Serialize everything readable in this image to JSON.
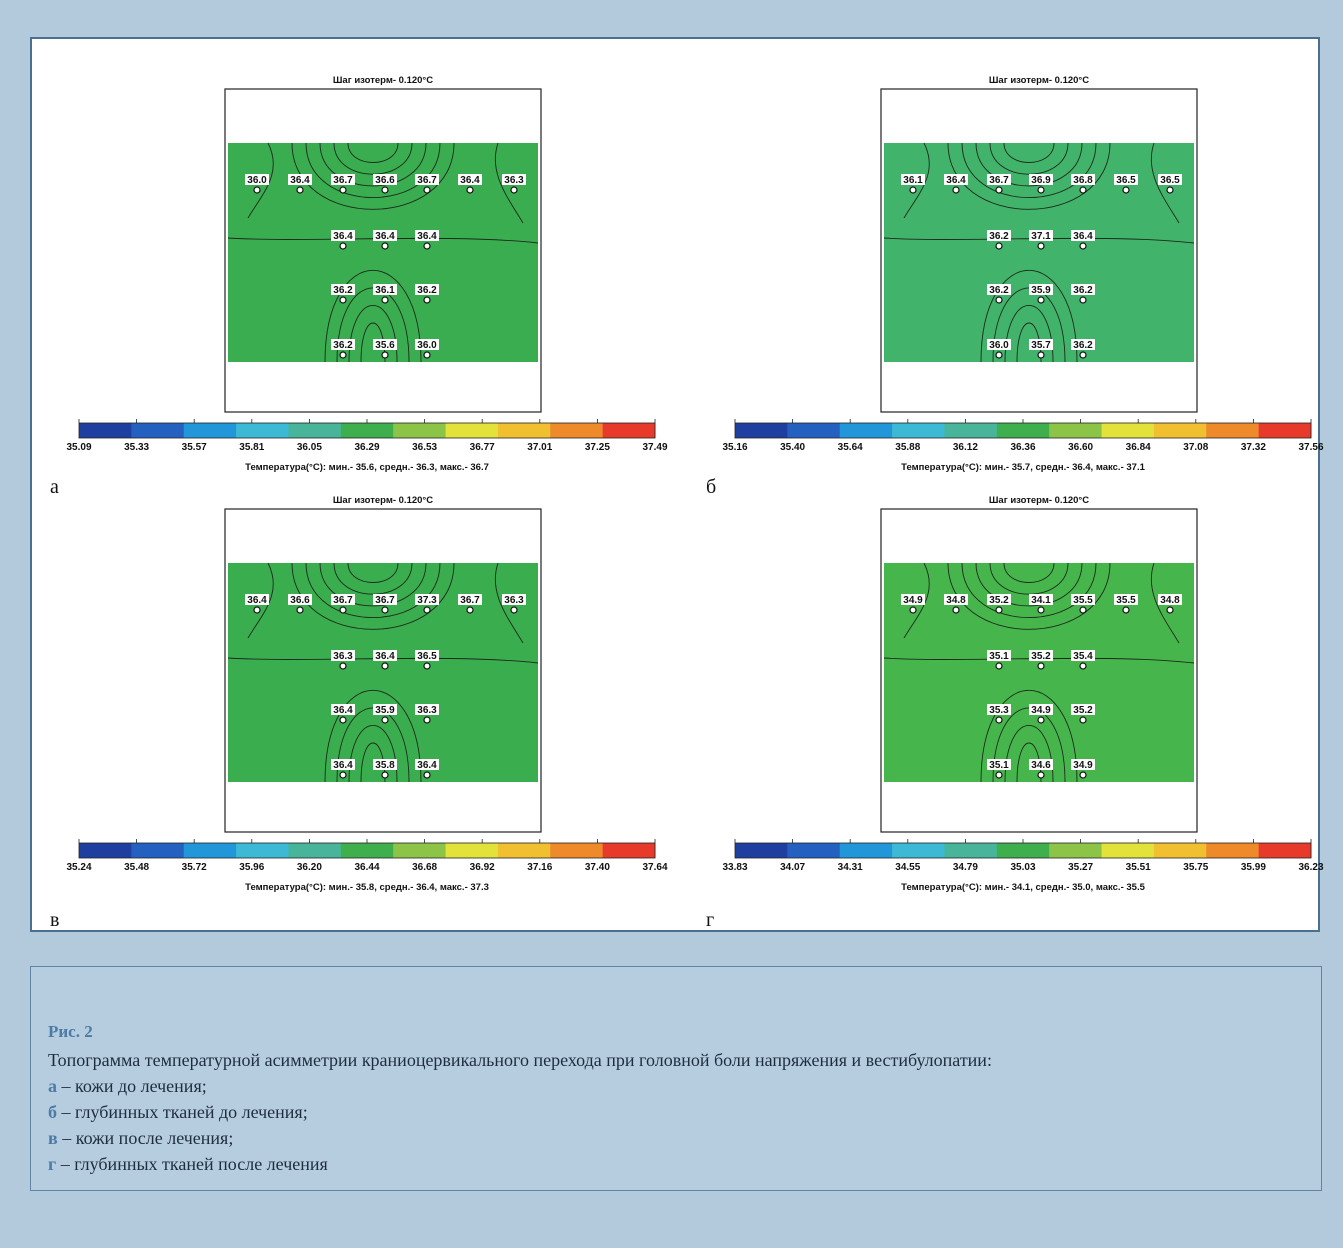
{
  "figure": {
    "panels": [
      {
        "letter": "а",
        "isotherm_title": "Шаг изотерм- 0.120°C",
        "colorbar_ticks": [
          "35.09",
          "35.33",
          "35.57",
          "35.81",
          "36.05",
          "36.29",
          "36.53",
          "36.77",
          "37.01",
          "37.25",
          "37.49"
        ],
        "stats": "Температура(°C): мин.- 35.6, средн.- 36.3, макс.- 36.7",
        "field_color": "#39ad4f",
        "points": [
          {
            "col": 0,
            "row": 0,
            "v": "36.0"
          },
          {
            "col": 1,
            "row": 0,
            "v": "36.4"
          },
          {
            "col": 2,
            "row": 0,
            "v": "36.7"
          },
          {
            "col": 3,
            "row": 0,
            "v": "36.6"
          },
          {
            "col": 4,
            "row": 0,
            "v": "36.7"
          },
          {
            "col": 5,
            "row": 0,
            "v": "36.4"
          },
          {
            "col": 6,
            "row": 0,
            "v": "36.3"
          },
          {
            "col": 2,
            "row": 1,
            "v": "36.4"
          },
          {
            "col": 3,
            "row": 1,
            "v": "36.4"
          },
          {
            "col": 4,
            "row": 1,
            "v": "36.4"
          },
          {
            "col": 2,
            "row": 2,
            "v": "36.2"
          },
          {
            "col": 3,
            "row": 2,
            "v": "36.1"
          },
          {
            "col": 4,
            "row": 2,
            "v": "36.2"
          },
          {
            "col": 2,
            "row": 3,
            "v": "36.2"
          },
          {
            "col": 3,
            "row": 3,
            "v": "35.6"
          },
          {
            "col": 4,
            "row": 3,
            "v": "36.0"
          }
        ]
      },
      {
        "letter": "б",
        "isotherm_title": "Шаг изотерм- 0.120°C",
        "colorbar_ticks": [
          "35.16",
          "35.40",
          "35.64",
          "35.88",
          "36.12",
          "36.36",
          "36.60",
          "36.84",
          "37.08",
          "37.32",
          "37.56"
        ],
        "stats": "Температура(°C): мин.- 35.7, средн.- 36.4, макс.- 37.1",
        "field_color": "#41b36a",
        "points": [
          {
            "col": 0,
            "row": 0,
            "v": "36.1"
          },
          {
            "col": 1,
            "row": 0,
            "v": "36.4"
          },
          {
            "col": 2,
            "row": 0,
            "v": "36.7"
          },
          {
            "col": 3,
            "row": 0,
            "v": "36.9"
          },
          {
            "col": 4,
            "row": 0,
            "v": "36.8"
          },
          {
            "col": 5,
            "row": 0,
            "v": "36.5"
          },
          {
            "col": 6,
            "row": 0,
            "v": "36.5"
          },
          {
            "col": 2,
            "row": 1,
            "v": "36.2"
          },
          {
            "col": 3,
            "row": 1,
            "v": "37.1"
          },
          {
            "col": 4,
            "row": 1,
            "v": "36.4"
          },
          {
            "col": 2,
            "row": 2,
            "v": "36.2"
          },
          {
            "col": 3,
            "row": 2,
            "v": "35.9"
          },
          {
            "col": 4,
            "row": 2,
            "v": "36.2"
          },
          {
            "col": 2,
            "row": 3,
            "v": "36.0"
          },
          {
            "col": 3,
            "row": 3,
            "v": "35.7"
          },
          {
            "col": 4,
            "row": 3,
            "v": "36.2"
          }
        ]
      },
      {
        "letter": "в",
        "isotherm_title": "Шаг изотерм- 0.120°C",
        "colorbar_ticks": [
          "35.24",
          "35.48",
          "35.72",
          "35.96",
          "36.20",
          "36.44",
          "36.68",
          "36.92",
          "37.16",
          "37.40",
          "37.64"
        ],
        "stats": "Температура(°C): мин.- 35.8, средн.- 36.4, макс.- 37.3",
        "field_color": "#3aad4e",
        "points": [
          {
            "col": 0,
            "row": 0,
            "v": "36.4"
          },
          {
            "col": 1,
            "row": 0,
            "v": "36.6"
          },
          {
            "col": 2,
            "row": 0,
            "v": "36.7"
          },
          {
            "col": 3,
            "row": 0,
            "v": "36.7"
          },
          {
            "col": 4,
            "row": 0,
            "v": "37.3"
          },
          {
            "col": 5,
            "row": 0,
            "v": "36.7"
          },
          {
            "col": 6,
            "row": 0,
            "v": "36.3"
          },
          {
            "col": 2,
            "row": 1,
            "v": "36.3"
          },
          {
            "col": 3,
            "row": 1,
            "v": "36.4"
          },
          {
            "col": 4,
            "row": 1,
            "v": "36.5"
          },
          {
            "col": 2,
            "row": 2,
            "v": "36.4"
          },
          {
            "col": 3,
            "row": 2,
            "v": "35.9"
          },
          {
            "col": 4,
            "row": 2,
            "v": "36.3"
          },
          {
            "col": 2,
            "row": 3,
            "v": "36.4"
          },
          {
            "col": 3,
            "row": 3,
            "v": "35.8"
          },
          {
            "col": 4,
            "row": 3,
            "v": "36.4"
          }
        ]
      },
      {
        "letter": "г",
        "isotherm_title": "Шаг изотерм- 0.120°C",
        "colorbar_ticks": [
          "33.83",
          "34.07",
          "34.31",
          "34.55",
          "34.79",
          "35.03",
          "35.27",
          "35.51",
          "35.75",
          "35.99",
          "36.23"
        ],
        "stats": "Температура(°C): мин.- 34.1, средн.- 35.0, макс.- 35.5",
        "field_color": "#46b64c",
        "points": [
          {
            "col": 0,
            "row": 0,
            "v": "34.9"
          },
          {
            "col": 1,
            "row": 0,
            "v": "34.8"
          },
          {
            "col": 2,
            "row": 0,
            "v": "35.2"
          },
          {
            "col": 3,
            "row": 0,
            "v": "34.1"
          },
          {
            "col": 4,
            "row": 0,
            "v": "35.5"
          },
          {
            "col": 5,
            "row": 0,
            "v": "35.5"
          },
          {
            "col": 6,
            "row": 0,
            "v": "34.8"
          },
          {
            "col": 2,
            "row": 1,
            "v": "35.1"
          },
          {
            "col": 3,
            "row": 1,
            "v": "35.2"
          },
          {
            "col": 4,
            "row": 1,
            "v": "35.4"
          },
          {
            "col": 2,
            "row": 2,
            "v": "35.3"
          },
          {
            "col": 3,
            "row": 2,
            "v": "34.9"
          },
          {
            "col": 4,
            "row": 2,
            "v": "35.2"
          },
          {
            "col": 2,
            "row": 3,
            "v": "35.1"
          },
          {
            "col": 3,
            "row": 3,
            "v": "34.6"
          },
          {
            "col": 4,
            "row": 3,
            "v": "34.9"
          }
        ]
      }
    ],
    "colorbar_colors": [
      "#1f3fa0",
      "#2360c0",
      "#2196d8",
      "#3cb9d4",
      "#48b59a",
      "#3fae4c",
      "#8cc447",
      "#e2e23a",
      "#f0c030",
      "#ee8a2a",
      "#e83a2a"
    ]
  },
  "caption": {
    "label": "Рис. 2",
    "title": "Топограмма температурной асимметрии краниоцервикального перехода при головной боли напряжения и вестибулопатии:",
    "items": [
      {
        "letter": "а",
        "text": " – кожи до лечения;"
      },
      {
        "letter": "б",
        "text": " – глубинных тканей до лечения;"
      },
      {
        "letter": "в",
        "text": " – кожи после лечения;"
      },
      {
        "letter": "г",
        "text": " – глубинных тканей после лечения"
      }
    ]
  }
}
